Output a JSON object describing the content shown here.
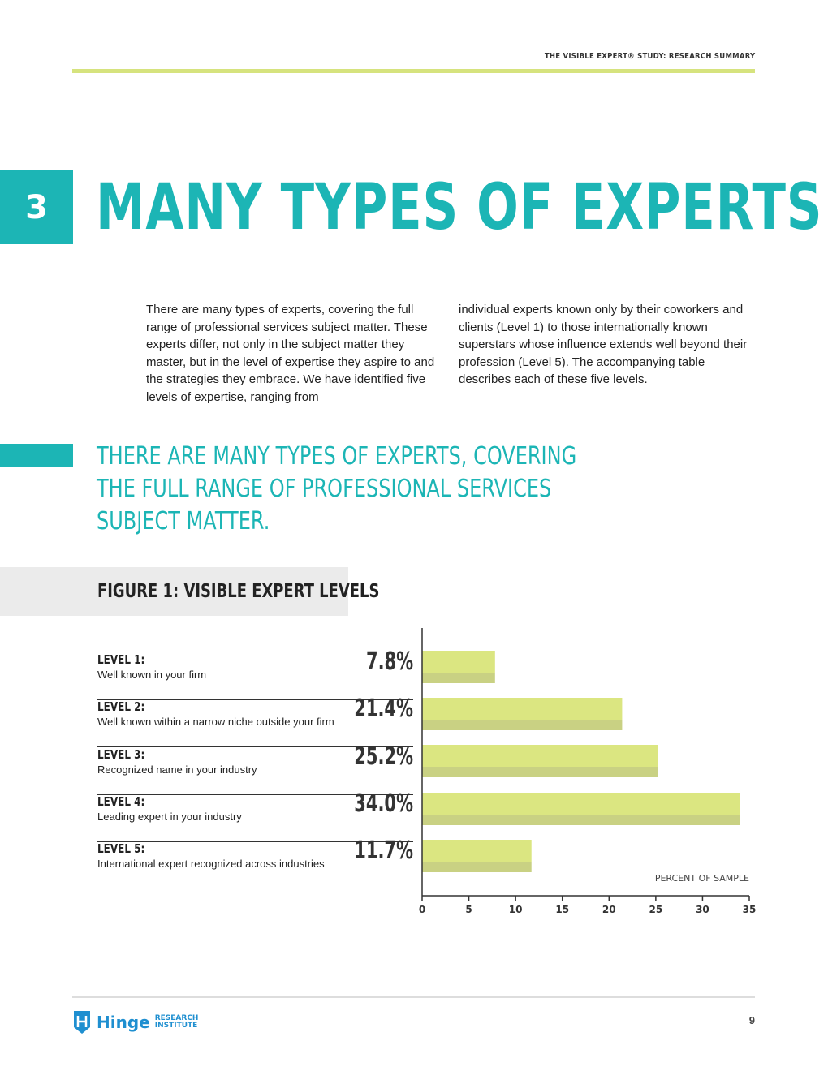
{
  "header": {
    "running_title": "THE VISIBLE EXPERT® STUDY: RESEARCH SUMMARY"
  },
  "section": {
    "number": "3",
    "title": "MANY TYPES OF EXPERTS"
  },
  "body": {
    "col1": "There are many types of experts, covering the full range of professional services subject matter. These experts differ, not only in the subject matter they master, but in the level of expertise they aspire to and the strategies they embrace. We have identified five levels of expertise, ranging from",
    "col2": "individual experts known only by their coworkers and clients (Level 1) to those internationally known superstars whose influence extends well beyond their profession (Level 5). The accompanying table describes each of these five levels."
  },
  "pull_quote": "THERE ARE MANY TYPES OF EXPERTS, COVERING THE FULL RANGE OF PROFESSIONAL SERVICES SUBJECT MATTER.",
  "figure": {
    "title": "FIGURE 1: VISIBLE EXPERT LEVELS"
  },
  "levels": [
    {
      "name": "LEVEL 1:",
      "desc": "Well known in your firm",
      "value_label": "7.8%"
    },
    {
      "name": "LEVEL 2:",
      "desc": "Well known within a narrow niche outside your firm",
      "value_label": "21.4%"
    },
    {
      "name": "LEVEL 3:",
      "desc": "Recognized name in your industry",
      "value_label": "25.2%"
    },
    {
      "name": "LEVEL 4:",
      "desc": "Leading expert in your industry",
      "value_label": "34.0%"
    },
    {
      "name": "LEVEL 5:",
      "desc": "International expert recognized across industries",
      "value_label": "11.7%"
    }
  ],
  "chart_data": {
    "type": "bar",
    "orientation": "horizontal",
    "categories": [
      "LEVEL 1:",
      "LEVEL 2:",
      "LEVEL 3:",
      "LEVEL 4:",
      "LEVEL 5:"
    ],
    "values": [
      7.8,
      21.4,
      25.2,
      34.0,
      11.7
    ],
    "xlabel": "PERCENT OF SAMPLE",
    "xlim": [
      0,
      35
    ],
    "xticks": [
      0,
      5,
      10,
      15,
      20,
      25,
      30,
      35
    ],
    "grid": false,
    "colors": {
      "bar_light": "#dbe681",
      "bar_dark": "#c9d183"
    }
  },
  "footer": {
    "logo_word": "Hinge",
    "logo_sub1": "RESEARCH",
    "logo_sub2": "INSTITUTE",
    "page_number": "9"
  }
}
